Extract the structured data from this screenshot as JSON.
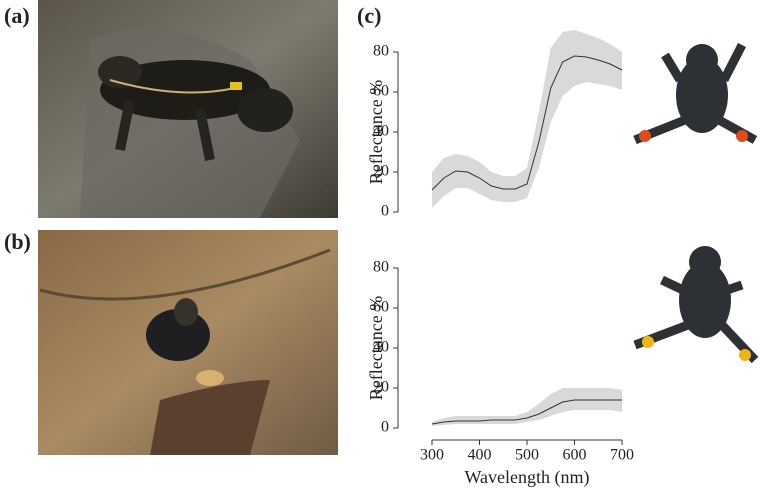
{
  "panels": [
    "(a)",
    "(b)",
    "(c)"
  ],
  "chart_data": [
    {
      "type": "line",
      "ylabel": "Reflectance %",
      "x": [
        300,
        325,
        350,
        375,
        400,
        425,
        450,
        475,
        500,
        525,
        550,
        575,
        600,
        625,
        650,
        675,
        700
      ],
      "values": [
        11,
        17,
        20.5,
        20,
        17,
        13,
        11.5,
        11.5,
        14,
        35,
        62,
        75,
        78,
        77.5,
        76,
        74,
        71
      ],
      "upper": [
        20,
        27,
        29,
        28,
        25,
        20,
        18,
        18,
        22,
        50,
        82,
        90,
        91,
        89,
        87,
        84,
        80
      ],
      "lower": [
        2,
        8,
        12,
        12,
        9,
        6,
        5,
        5,
        7,
        22,
        45,
        58,
        63,
        65,
        64,
        63,
        61
      ],
      "color": "#333333",
      "band_color": "#d9d9d9",
      "xlim": [
        300,
        700
      ],
      "ylim": [
        0,
        90
      ],
      "yticks": [
        0,
        20,
        40,
        60,
        80
      ]
    },
    {
      "type": "line",
      "ylabel": "Reflectance %",
      "xlabel": "Wavelength (nm)",
      "x": [
        300,
        325,
        350,
        375,
        400,
        425,
        450,
        475,
        500,
        525,
        550,
        575,
        600,
        625,
        650,
        675,
        700
      ],
      "values": [
        2,
        3,
        3.5,
        3.5,
        3.5,
        4,
        4,
        4,
        5,
        7,
        10,
        13,
        14,
        14,
        14,
        14,
        14
      ],
      "upper": [
        3,
        5,
        6,
        6,
        6,
        6,
        6,
        6,
        8,
        12,
        17,
        20,
        20,
        20,
        20,
        20,
        19
      ],
      "lower": [
        1,
        1.5,
        2,
        2,
        2,
        2,
        2,
        2,
        3,
        4,
        6,
        8,
        9,
        9,
        9,
        9,
        8
      ],
      "color": "#333333",
      "band_color": "#d9d9d9",
      "xlim": [
        300,
        700
      ],
      "ylim": [
        0,
        90
      ],
      "yticks": [
        0,
        20,
        40,
        60,
        80
      ],
      "xticks": [
        300,
        400,
        500,
        600,
        700
      ]
    }
  ]
}
